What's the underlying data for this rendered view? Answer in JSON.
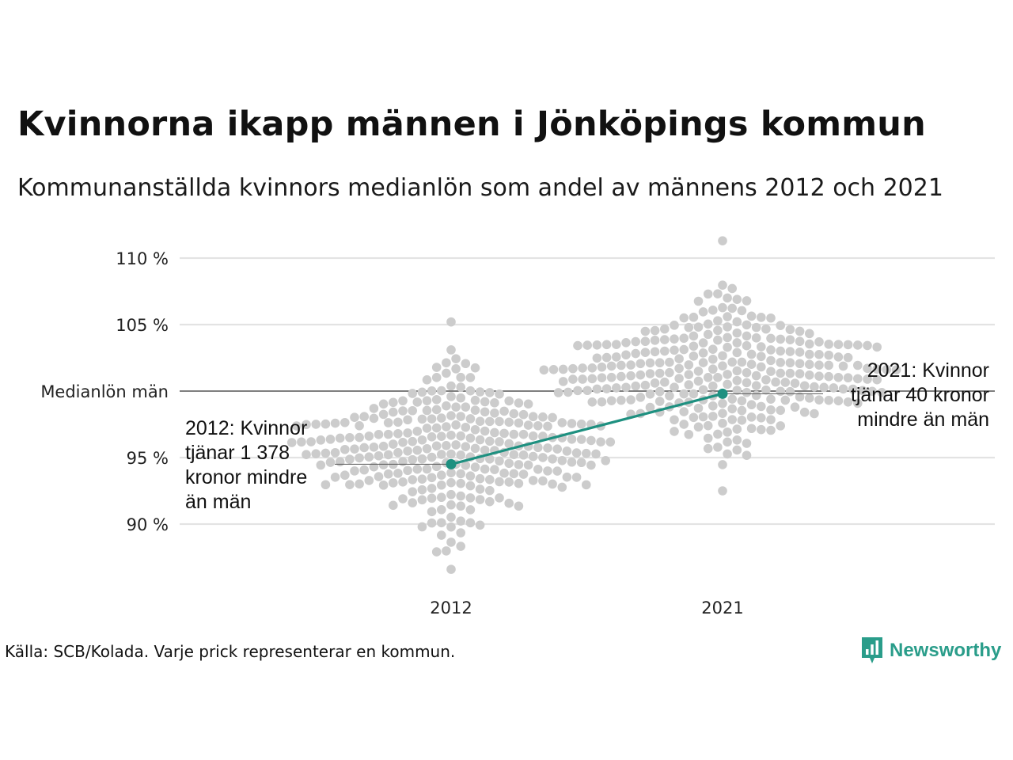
{
  "title": "Kvinnorna ikapp männen i Jönköpings kommun",
  "subtitle": "Kommunanställda kvinnors medianlön som andel av männens 2012 och 2021",
  "source": "Källa: SCB/Kolada. Varje prick representerar en kommun.",
  "brand": {
    "name": "Newsworthy",
    "icon": "newsworthy-logo-icon",
    "color": "#2a9d8a"
  },
  "colors": {
    "highlight": "#1e9080",
    "dots": "#cccccc",
    "grid": "#e3e3e3",
    "reference": "#333333"
  },
  "chart_data": {
    "type": "scatter",
    "categories": [
      "2012",
      "2021"
    ],
    "ylim": [
      86,
      111
    ],
    "yticks": [
      {
        "value": 90,
        "label": "90 %"
      },
      {
        "value": 95,
        "label": "95 %"
      },
      {
        "value": 100,
        "label": "Medianlön män"
      },
      {
        "value": 105,
        "label": "105 %"
      },
      {
        "value": 110,
        "label": "110 %"
      }
    ],
    "grid": true,
    "reference_line": {
      "value": 100,
      "label": "Medianlön män"
    },
    "highlight": {
      "name": "Jönköping",
      "values": [
        {
          "year": "2012",
          "value": 94.5
        },
        {
          "year": "2021",
          "value": 99.8
        }
      ]
    },
    "annotations": [
      {
        "year": "2012",
        "lines": [
          "2012: Kvinnor",
          "tjänar 1 378",
          "kronor mindre",
          "än män"
        ]
      },
      {
        "year": "2021",
        "lines": [
          "2021: Kvinnor",
          "tjänar 40 kronor",
          "mindre än män"
        ]
      }
    ],
    "distribution_note": "Varje prick representerar en kommun.",
    "distributions": [
      {
        "year": "2012",
        "min": 86.6,
        "max": 105.2,
        "median": 95.8
      },
      {
        "year": "2021",
        "min": 92.5,
        "max": 111.3,
        "median": 101.2
      }
    ]
  }
}
